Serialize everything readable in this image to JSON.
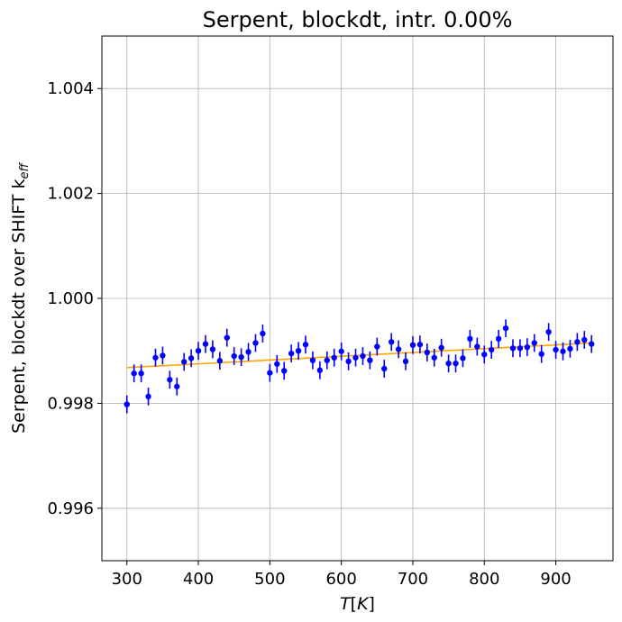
{
  "chart_data": {
    "type": "scatter",
    "title": "Serpent, blockdt, intr. 0.00%",
    "xlabel": "T[K]",
    "ylabel": "Serpent, blockdt over SHIFT k",
    "ylabel_subscript": "eff",
    "xlim": [
      265,
      980
    ],
    "ylim": [
      0.995,
      1.005
    ],
    "xticks": [
      300,
      400,
      500,
      600,
      700,
      800,
      900
    ],
    "yticks": [
      0.996,
      0.998,
      1.0,
      1.002,
      1.004
    ],
    "ytick_labels": [
      "0.996",
      "0.998",
      "1.000",
      "1.002",
      "1.004"
    ],
    "grid": true,
    "series": [
      {
        "kind": "errorbar",
        "color": "#0000ff",
        "x": [
          300,
          310,
          320,
          330,
          340,
          350,
          360,
          370,
          380,
          390,
          400,
          410,
          420,
          430,
          440,
          450,
          460,
          470,
          480,
          490,
          500,
          510,
          520,
          530,
          540,
          550,
          560,
          570,
          580,
          590,
          600,
          610,
          620,
          630,
          640,
          650,
          660,
          670,
          680,
          690,
          700,
          710,
          720,
          730,
          740,
          750,
          760,
          770,
          780,
          790,
          800,
          810,
          820,
          830,
          840,
          850,
          860,
          870,
          880,
          890,
          900,
          910,
          920,
          930,
          940,
          950
        ],
        "y": [
          0.99798,
          0.99857,
          0.99857,
          0.99813,
          0.99887,
          0.99891,
          0.99845,
          0.99832,
          0.99879,
          0.99886,
          0.999,
          0.99913,
          0.99903,
          0.99881,
          0.99925,
          0.9989,
          0.99888,
          0.99898,
          0.99915,
          0.99933,
          0.99858,
          0.99875,
          0.99862,
          0.99895,
          0.999,
          0.99912,
          0.99882,
          0.99863,
          0.99882,
          0.99887,
          0.99899,
          0.9988,
          0.99887,
          0.9989,
          0.99882,
          0.99908,
          0.99866,
          0.99917,
          0.99903,
          0.9988,
          0.99911,
          0.99912,
          0.99897,
          0.99887,
          0.99906,
          0.99876,
          0.99876,
          0.99886,
          0.99923,
          0.99908,
          0.99893,
          0.99902,
          0.99923,
          0.99943,
          0.99905,
          0.99905,
          0.99907,
          0.99915,
          0.99894,
          0.99936,
          0.99902,
          0.99899,
          0.99904,
          0.99917,
          0.99921,
          0.99913
        ],
        "yerr": 0.00017
      },
      {
        "kind": "line",
        "color": "#ffa500",
        "x": [
          300,
          950
        ],
        "y": [
          0.99868,
          0.99915
        ]
      }
    ]
  }
}
